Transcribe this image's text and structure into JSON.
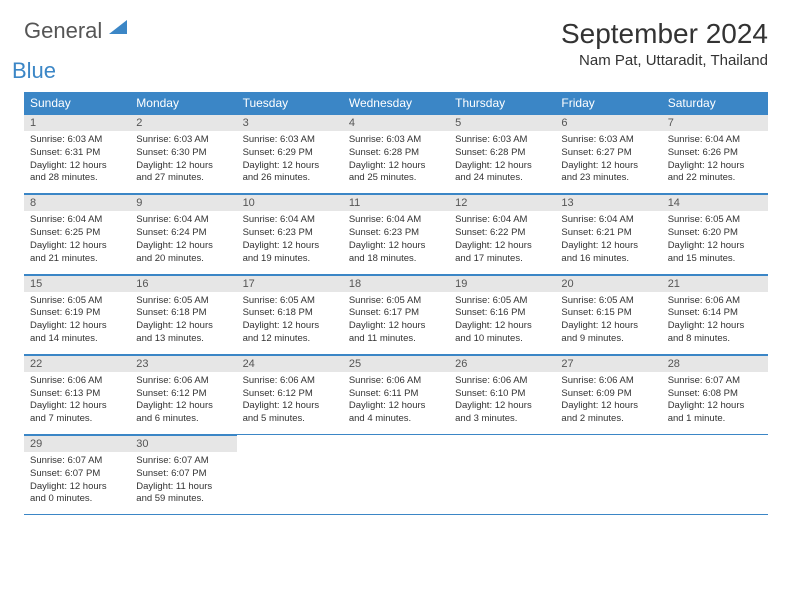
{
  "brand": {
    "word1": "General",
    "word2": "Blue"
  },
  "title": "September 2024",
  "location": "Nam Pat, Uttaradit, Thailand",
  "colors": {
    "accent": "#3b86c6",
    "header_bg": "#3b86c6",
    "grey_bg": "#e6e6e6",
    "text": "#333333",
    "logo_grey": "#555555"
  },
  "day_headers": [
    "Sunday",
    "Monday",
    "Tuesday",
    "Wednesday",
    "Thursday",
    "Friday",
    "Saturday"
  ],
  "weeks": [
    [
      {
        "num": "1",
        "sunrise": "Sunrise: 6:03 AM",
        "sunset": "Sunset: 6:31 PM",
        "day1": "Daylight: 12 hours",
        "day2": "and 28 minutes."
      },
      {
        "num": "2",
        "sunrise": "Sunrise: 6:03 AM",
        "sunset": "Sunset: 6:30 PM",
        "day1": "Daylight: 12 hours",
        "day2": "and 27 minutes."
      },
      {
        "num": "3",
        "sunrise": "Sunrise: 6:03 AM",
        "sunset": "Sunset: 6:29 PM",
        "day1": "Daylight: 12 hours",
        "day2": "and 26 minutes."
      },
      {
        "num": "4",
        "sunrise": "Sunrise: 6:03 AM",
        "sunset": "Sunset: 6:28 PM",
        "day1": "Daylight: 12 hours",
        "day2": "and 25 minutes."
      },
      {
        "num": "5",
        "sunrise": "Sunrise: 6:03 AM",
        "sunset": "Sunset: 6:28 PM",
        "day1": "Daylight: 12 hours",
        "day2": "and 24 minutes."
      },
      {
        "num": "6",
        "sunrise": "Sunrise: 6:03 AM",
        "sunset": "Sunset: 6:27 PM",
        "day1": "Daylight: 12 hours",
        "day2": "and 23 minutes."
      },
      {
        "num": "7",
        "sunrise": "Sunrise: 6:04 AM",
        "sunset": "Sunset: 6:26 PM",
        "day1": "Daylight: 12 hours",
        "day2": "and 22 minutes."
      }
    ],
    [
      {
        "num": "8",
        "sunrise": "Sunrise: 6:04 AM",
        "sunset": "Sunset: 6:25 PM",
        "day1": "Daylight: 12 hours",
        "day2": "and 21 minutes."
      },
      {
        "num": "9",
        "sunrise": "Sunrise: 6:04 AM",
        "sunset": "Sunset: 6:24 PM",
        "day1": "Daylight: 12 hours",
        "day2": "and 20 minutes."
      },
      {
        "num": "10",
        "sunrise": "Sunrise: 6:04 AM",
        "sunset": "Sunset: 6:23 PM",
        "day1": "Daylight: 12 hours",
        "day2": "and 19 minutes."
      },
      {
        "num": "11",
        "sunrise": "Sunrise: 6:04 AM",
        "sunset": "Sunset: 6:23 PM",
        "day1": "Daylight: 12 hours",
        "day2": "and 18 minutes."
      },
      {
        "num": "12",
        "sunrise": "Sunrise: 6:04 AM",
        "sunset": "Sunset: 6:22 PM",
        "day1": "Daylight: 12 hours",
        "day2": "and 17 minutes."
      },
      {
        "num": "13",
        "sunrise": "Sunrise: 6:04 AM",
        "sunset": "Sunset: 6:21 PM",
        "day1": "Daylight: 12 hours",
        "day2": "and 16 minutes."
      },
      {
        "num": "14",
        "sunrise": "Sunrise: 6:05 AM",
        "sunset": "Sunset: 6:20 PM",
        "day1": "Daylight: 12 hours",
        "day2": "and 15 minutes."
      }
    ],
    [
      {
        "num": "15",
        "sunrise": "Sunrise: 6:05 AM",
        "sunset": "Sunset: 6:19 PM",
        "day1": "Daylight: 12 hours",
        "day2": "and 14 minutes."
      },
      {
        "num": "16",
        "sunrise": "Sunrise: 6:05 AM",
        "sunset": "Sunset: 6:18 PM",
        "day1": "Daylight: 12 hours",
        "day2": "and 13 minutes."
      },
      {
        "num": "17",
        "sunrise": "Sunrise: 6:05 AM",
        "sunset": "Sunset: 6:18 PM",
        "day1": "Daylight: 12 hours",
        "day2": "and 12 minutes."
      },
      {
        "num": "18",
        "sunrise": "Sunrise: 6:05 AM",
        "sunset": "Sunset: 6:17 PM",
        "day1": "Daylight: 12 hours",
        "day2": "and 11 minutes."
      },
      {
        "num": "19",
        "sunrise": "Sunrise: 6:05 AM",
        "sunset": "Sunset: 6:16 PM",
        "day1": "Daylight: 12 hours",
        "day2": "and 10 minutes."
      },
      {
        "num": "20",
        "sunrise": "Sunrise: 6:05 AM",
        "sunset": "Sunset: 6:15 PM",
        "day1": "Daylight: 12 hours",
        "day2": "and 9 minutes."
      },
      {
        "num": "21",
        "sunrise": "Sunrise: 6:06 AM",
        "sunset": "Sunset: 6:14 PM",
        "day1": "Daylight: 12 hours",
        "day2": "and 8 minutes."
      }
    ],
    [
      {
        "num": "22",
        "sunrise": "Sunrise: 6:06 AM",
        "sunset": "Sunset: 6:13 PM",
        "day1": "Daylight: 12 hours",
        "day2": "and 7 minutes."
      },
      {
        "num": "23",
        "sunrise": "Sunrise: 6:06 AM",
        "sunset": "Sunset: 6:12 PM",
        "day1": "Daylight: 12 hours",
        "day2": "and 6 minutes."
      },
      {
        "num": "24",
        "sunrise": "Sunrise: 6:06 AM",
        "sunset": "Sunset: 6:12 PM",
        "day1": "Daylight: 12 hours",
        "day2": "and 5 minutes."
      },
      {
        "num": "25",
        "sunrise": "Sunrise: 6:06 AM",
        "sunset": "Sunset: 6:11 PM",
        "day1": "Daylight: 12 hours",
        "day2": "and 4 minutes."
      },
      {
        "num": "26",
        "sunrise": "Sunrise: 6:06 AM",
        "sunset": "Sunset: 6:10 PM",
        "day1": "Daylight: 12 hours",
        "day2": "and 3 minutes."
      },
      {
        "num": "27",
        "sunrise": "Sunrise: 6:06 AM",
        "sunset": "Sunset: 6:09 PM",
        "day1": "Daylight: 12 hours",
        "day2": "and 2 minutes."
      },
      {
        "num": "28",
        "sunrise": "Sunrise: 6:07 AM",
        "sunset": "Sunset: 6:08 PM",
        "day1": "Daylight: 12 hours",
        "day2": "and 1 minute."
      }
    ],
    [
      {
        "num": "29",
        "sunrise": "Sunrise: 6:07 AM",
        "sunset": "Sunset: 6:07 PM",
        "day1": "Daylight: 12 hours",
        "day2": "and 0 minutes."
      },
      {
        "num": "30",
        "sunrise": "Sunrise: 6:07 AM",
        "sunset": "Sunset: 6:07 PM",
        "day1": "Daylight: 11 hours",
        "day2": "and 59 minutes."
      },
      null,
      null,
      null,
      null,
      null
    ]
  ]
}
